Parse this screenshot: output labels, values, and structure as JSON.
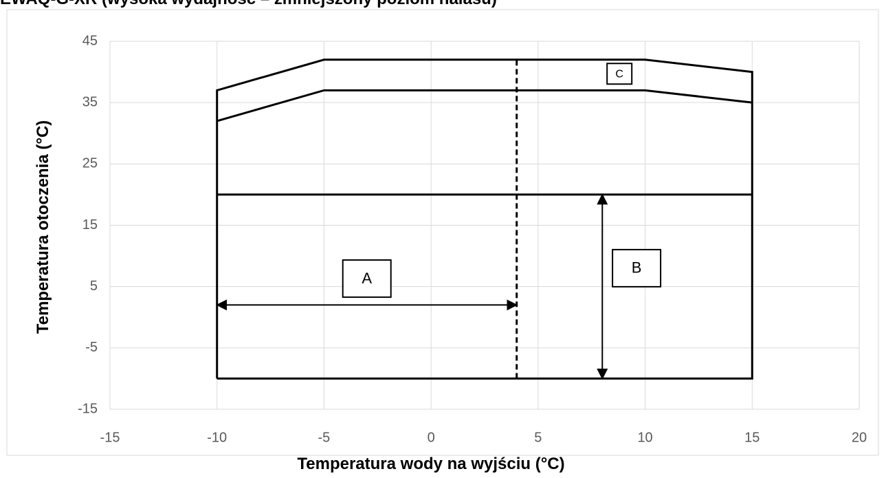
{
  "chart_data": {
    "type": "line",
    "title": "EWAQ-G-XR (wysoka wydajność – zmniejszony poziom hałasu)",
    "xlabel": "Temperatura wody na wyjściu (°C)",
    "ylabel": "Temperatura otoczenia (°C)",
    "xlim": [
      -15,
      20
    ],
    "ylim": [
      -15,
      45
    ],
    "xticks": [
      -15,
      -10,
      -5,
      0,
      5,
      10,
      15,
      20
    ],
    "yticks": [
      -15,
      -5,
      5,
      15,
      25,
      35,
      45
    ],
    "grid": true,
    "series": [
      {
        "color": "#000000",
        "x": [
          -10,
          -10,
          -5,
          10,
          15,
          15,
          -10
        ],
        "values": [
          -10,
          37,
          42,
          42,
          40,
          -10,
          -10
        ]
      },
      {
        "color": "#000000",
        "x": [
          -10,
          -5,
          10,
          15
        ],
        "values": [
          32,
          37,
          37,
          35
        ]
      },
      {
        "color": "#000000",
        "x": [
          -10,
          15
        ],
        "values": [
          20,
          20
        ]
      },
      {
        "color": "#000000",
        "dash": true,
        "x": [
          4,
          4
        ],
        "values": [
          -10,
          42
        ]
      }
    ],
    "arrows": [
      {
        "x": [
          -10,
          4
        ],
        "values": [
          2,
          2
        ]
      },
      {
        "x": [
          8,
          8
        ],
        "values": [
          -10,
          20
        ]
      }
    ],
    "annotations": [
      {
        "text": "A",
        "x": -3,
        "y": 6.3
      },
      {
        "text": "B",
        "x": 9.6,
        "y": 8
      },
      {
        "text": "C",
        "x": 8.8,
        "y": 39.7
      }
    ]
  }
}
